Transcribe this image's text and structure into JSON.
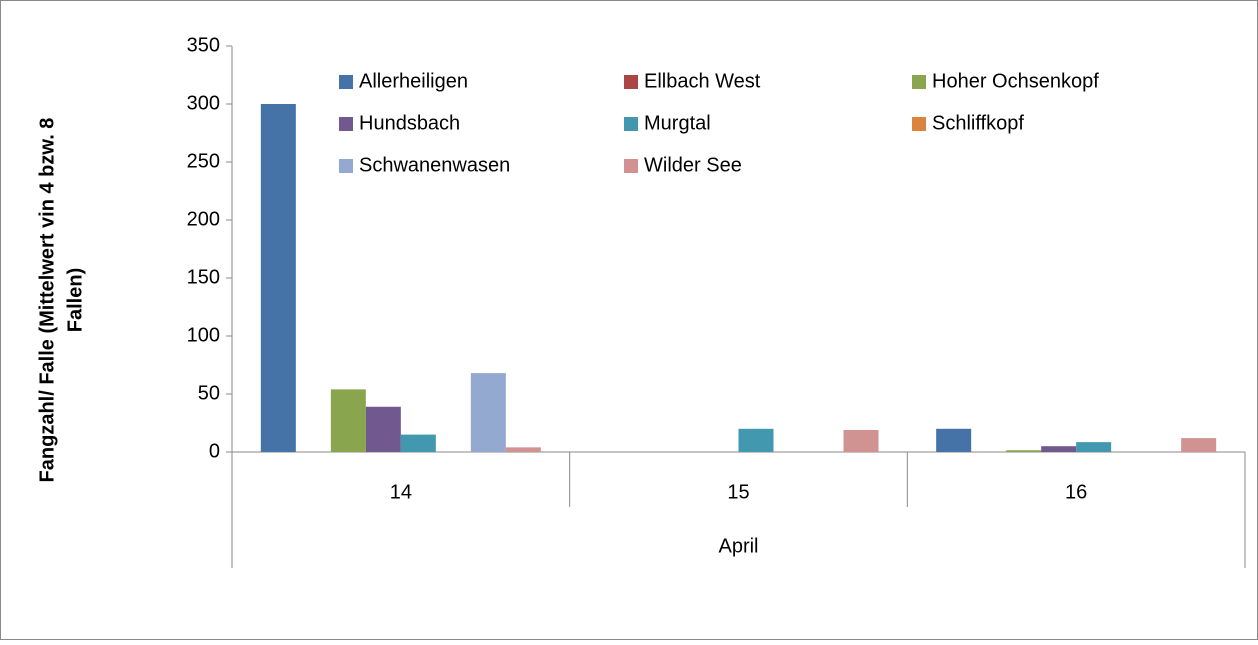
{
  "chart_data": {
    "type": "bar",
    "y_label": [
      "Fangzahl/ Falle (Mittelwert vin 4 bzw. 8",
      "Fallen)"
    ],
    "categories": [
      "14",
      "15",
      "16"
    ],
    "category_group": "April",
    "series": [
      {
        "name": "Allerheiligen",
        "color": "#4572a7",
        "values": [
          300,
          0,
          20
        ]
      },
      {
        "name": "Ellbach West",
        "color": "#aa4643",
        "values": [
          0,
          0,
          0
        ]
      },
      {
        "name": "Hoher Ochsenkopf",
        "color": "#89a54e",
        "values": [
          54,
          0,
          1.5
        ]
      },
      {
        "name": "Hundsbach",
        "color": "#71588f",
        "values": [
          39,
          0,
          5
        ]
      },
      {
        "name": "Murgtal",
        "color": "#4198af",
        "values": [
          15,
          20,
          8.5
        ]
      },
      {
        "name": "Schliffkopf",
        "color": "#db843d",
        "values": [
          0,
          0,
          0
        ]
      },
      {
        "name": "Schwanenwasen",
        "color": "#93a9cf",
        "values": [
          68,
          0,
          0
        ]
      },
      {
        "name": "Wilder See",
        "color": "#d19392",
        "values": [
          4,
          19,
          12
        ]
      }
    ],
    "ylim": [
      0,
      350
    ],
    "yticks": [
      0,
      50,
      100,
      150,
      200,
      250,
      300,
      350
    ],
    "legend": "top"
  }
}
